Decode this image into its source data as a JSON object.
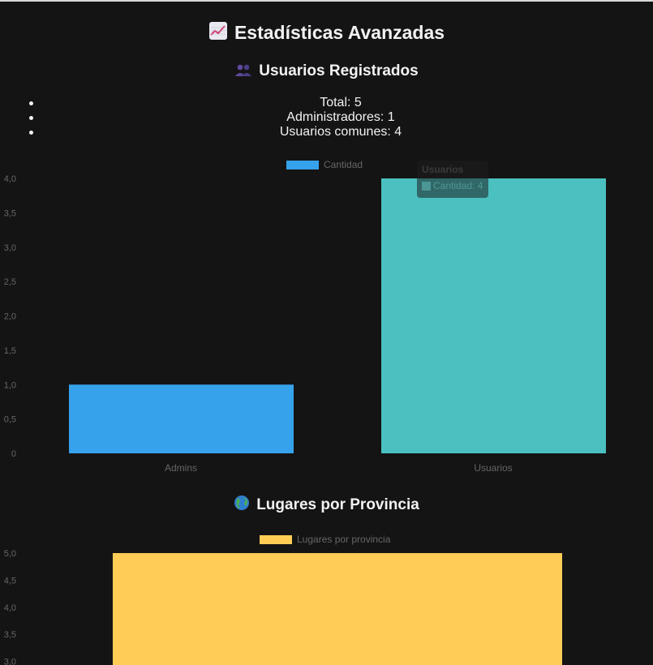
{
  "page": {
    "title": "Estadísticas Avanzadas",
    "title_icon": "chart-increasing-icon"
  },
  "users_section": {
    "title": "Usuarios Registrados",
    "icon": "people-icon",
    "stats": [
      "Total: 5",
      "Administradores: 1",
      "Usuarios comunes: 4"
    ],
    "tooltip": {
      "title": "Usuarios",
      "body": "Cantidad: 4"
    }
  },
  "places_section": {
    "title": "Lugares por Provincia",
    "icon": "globe-icon"
  },
  "colors": {
    "admins": "#36a2eb",
    "usuarios": "#4bc0c0",
    "places": "#ffcd56",
    "axis_text": "#666666"
  },
  "chart_data": [
    {
      "type": "bar",
      "categories": [
        "Admins",
        "Usuarios"
      ],
      "series": [
        {
          "name": "Cantidad",
          "values": [
            1,
            4
          ]
        }
      ],
      "ylim": [
        0,
        4
      ],
      "yticks": [
        "4,0",
        "3,5",
        "3,0",
        "2,5",
        "2,0",
        "1,5",
        "1,0",
        "0,5",
        "0"
      ],
      "legend": "top-center",
      "grid": false
    },
    {
      "type": "bar",
      "categories": [
        ""
      ],
      "series": [
        {
          "name": "Lugares por provincia",
          "values": [
            5
          ]
        }
      ],
      "ylim": [
        0,
        5
      ],
      "yticks_visible": [
        "5,0",
        "4,5",
        "4,0",
        "3,5",
        "3,0"
      ],
      "legend": "top-center",
      "grid": false
    }
  ]
}
